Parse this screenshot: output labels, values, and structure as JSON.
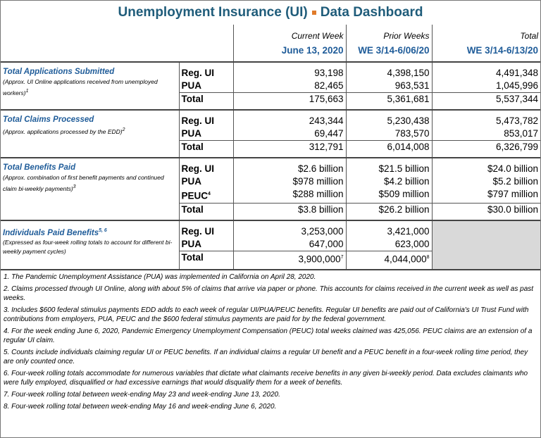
{
  "title": {
    "part1": "Unemployment Insurance (UI)",
    "part2": "Data Dashboard"
  },
  "columns": [
    {
      "label": "Current Week",
      "date": "June 13, 2020"
    },
    {
      "label": "Prior Weeks",
      "date": "WE 3/14-6/06/20"
    },
    {
      "label": "Total",
      "date": "WE 3/14-6/13/20"
    }
  ],
  "sections": [
    {
      "title": "Total Applications Submitted",
      "note": "(Approx. UI Online applications received from unemployed workers)",
      "note_sup": "1",
      "rows": [
        {
          "label": "Reg. UI",
          "values": [
            "93,198",
            "4,398,150",
            "4,491,348"
          ]
        },
        {
          "label": "PUA",
          "values": [
            "82,465",
            "963,531",
            "1,045,996"
          ]
        },
        {
          "label": "Total",
          "values": [
            "175,663",
            "5,361,681",
            "5,537,344"
          ]
        }
      ]
    },
    {
      "title": "Total Claims Processed",
      "note": "(Approx. applications processed by the EDD)",
      "note_sup": "2",
      "rows": [
        {
          "label": "Reg. UI",
          "values": [
            "243,344",
            "5,230,438",
            "5,473,782"
          ]
        },
        {
          "label": "PUA",
          "values": [
            "69,447",
            "783,570",
            "853,017"
          ]
        },
        {
          "label": "Total",
          "values": [
            "312,791",
            "6,014,008",
            "6,326,799"
          ]
        }
      ]
    },
    {
      "title": "Total Benefits Paid",
      "note": "(Approx. combination of first benefit payments and continued claim bi-weekly payments)",
      "note_sup": "3",
      "rows": [
        {
          "label": "Reg. UI",
          "values": [
            "$2.6 billion",
            "$21.5 billion",
            "$24.0 billion"
          ]
        },
        {
          "label": "PUA",
          "values": [
            "$978 million",
            "$4.2 billion",
            "$5.2 billion"
          ]
        },
        {
          "label": "PEUC",
          "label_sup": "4",
          "values": [
            "$288 million",
            "$509 million",
            "$797 million"
          ]
        },
        {
          "label": "Total",
          "values": [
            "$3.8 billion",
            "$26.2 billion",
            "$30.0 billion"
          ]
        }
      ]
    },
    {
      "title": "Individuals Paid Benefits",
      "title_sup": "5, 6",
      "note": "(Expressed as four-week rolling totals to account for different bi-weekly payment cycles)",
      "rows": [
        {
          "label": "Reg. UI",
          "values": [
            "3,253,000",
            "3,421,000"
          ]
        },
        {
          "label": "PUA",
          "values": [
            "647,000",
            "623,000"
          ]
        },
        {
          "label": "Total",
          "values": [
            {
              "text": "3,900,000",
              "sup": "7"
            },
            {
              "text": "4,044,000",
              "sup": "8"
            }
          ]
        }
      ]
    }
  ],
  "footnotes": [
    "1. The Pandemic Unemployment Assistance (PUA) was implemented in California on April 28, 2020.",
    "2. Claims processed through UI Online, along with about 5% of claims that arrive via paper or phone.  This accounts for claims received in the current week as well as past weeks.",
    "3. Includes $600 federal stimulus payments EDD adds to each week of regular UI/PUA/PEUC benefits. Regular UI benefits are paid out of California's UI Trust Fund with contributions from employers, PUA, PEUC and the $600 federal stimulus payments are paid for by the federal government.",
    "4. For the week ending June 6, 2020, Pandemic Emergency Unemployment Compensation (PEUC) total weeks claimed was 425,056. PEUC claims are an extension of a regular UI claim.",
    "5. Counts include individuals claiming regular UI or PEUC benefits.  If an individual claims a regular UI benefit and a PEUC benefit in a four-week rolling time period, they are only counted once.",
    "6.  Four-week rolling totals accommodate for numerous variables that dictate what claimants receive benefits in any given bi-weekly period. Data excludes claimants who were fully employed, disqualified or had excessive earnings that would disqualify them for a week of benefits.",
    "7.  Four-week rolling total between week-ending May 23 and week-ending June 13, 2020.",
    "8. Four-week rolling total between week-ending May 16 and week-ending June 6, 2020."
  ]
}
